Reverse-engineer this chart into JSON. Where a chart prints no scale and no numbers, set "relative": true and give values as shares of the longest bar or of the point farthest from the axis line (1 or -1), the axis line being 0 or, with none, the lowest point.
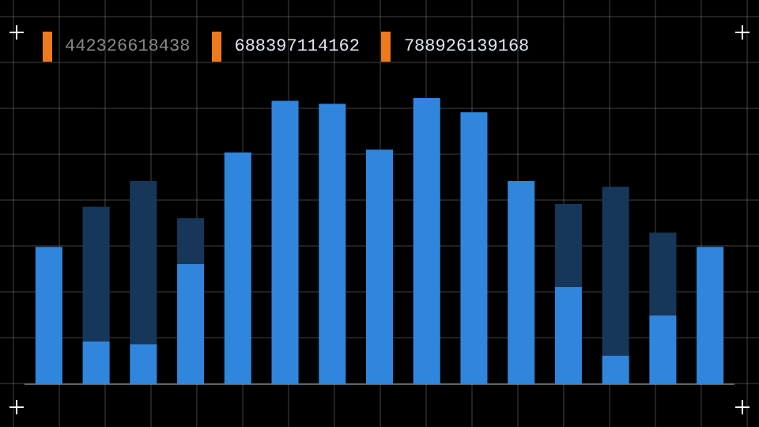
{
  "chart_data": {
    "type": "bar",
    "relative": true,
    "stacked": true,
    "grid": true,
    "categories": [
      null,
      null,
      null,
      null,
      null,
      null,
      null,
      null,
      null,
      null,
      null,
      null,
      null,
      null,
      null
    ],
    "series": [
      {
        "color": "#2f86dc",
        "values": [
          0.48,
          0.15,
          0.14,
          0.42,
          0.81,
          0.99,
          0.98,
          0.82,
          1,
          0.95,
          0.71,
          0.34,
          0.1,
          0.24,
          0.48
        ]
      },
      {
        "color": "#17375a",
        "values": [
          null,
          0.47,
          0.57,
          0.16,
          null,
          null,
          null,
          null,
          null,
          null,
          null,
          0.29,
          0.59,
          0.29,
          null
        ]
      }
    ],
    "annotations": [
      "442326618438",
      "688397114162",
      "788926139168"
    ]
  }
}
